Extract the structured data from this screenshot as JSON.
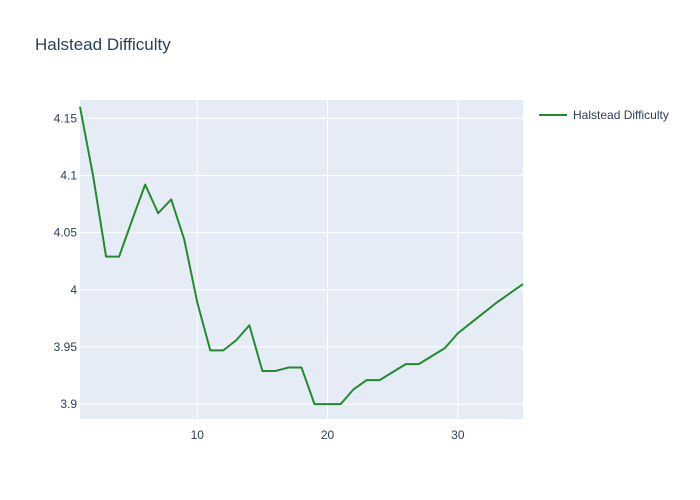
{
  "chart_data": {
    "type": "line",
    "title": "Halstead Difficulty",
    "xlabel": "",
    "ylabel": "",
    "xlim": [
      1,
      35
    ],
    "ylim": [
      3.887,
      4.166
    ],
    "x_ticks": [
      10,
      20,
      30
    ],
    "y_ticks": [
      3.9,
      3.95,
      4,
      4.05,
      4.1,
      4.15
    ],
    "y_tick_labels": [
      "3.9",
      "3.95",
      "4",
      "4.05",
      "4.1",
      "4.15"
    ],
    "grid": true,
    "legend_position": "top-right",
    "background_color": "#e5ecf6",
    "grid_color": "#ffffff",
    "series": [
      {
        "name": "Halstead Difficulty",
        "color": "#238b2e",
        "x": [
          1,
          2,
          3,
          4,
          5,
          6,
          7,
          8,
          9,
          10,
          11,
          12,
          13,
          14,
          15,
          16,
          17,
          18,
          19,
          20,
          21,
          22,
          23,
          24,
          25,
          26,
          27,
          28,
          29,
          30,
          31,
          32,
          33,
          34,
          35
        ],
        "y": [
          4.16,
          4.1,
          4.029,
          4.029,
          4.061,
          4.092,
          4.067,
          4.079,
          4.044,
          3.989,
          3.947,
          3.947,
          3.956,
          3.969,
          3.929,
          3.929,
          3.932,
          3.932,
          3.9,
          3.9,
          3.9,
          3.913,
          3.921,
          3.921,
          3.928,
          3.935,
          3.935,
          3.942,
          3.949,
          3.962,
          3.971,
          3.98,
          3.989,
          3.997,
          4.005
        ]
      }
    ]
  }
}
